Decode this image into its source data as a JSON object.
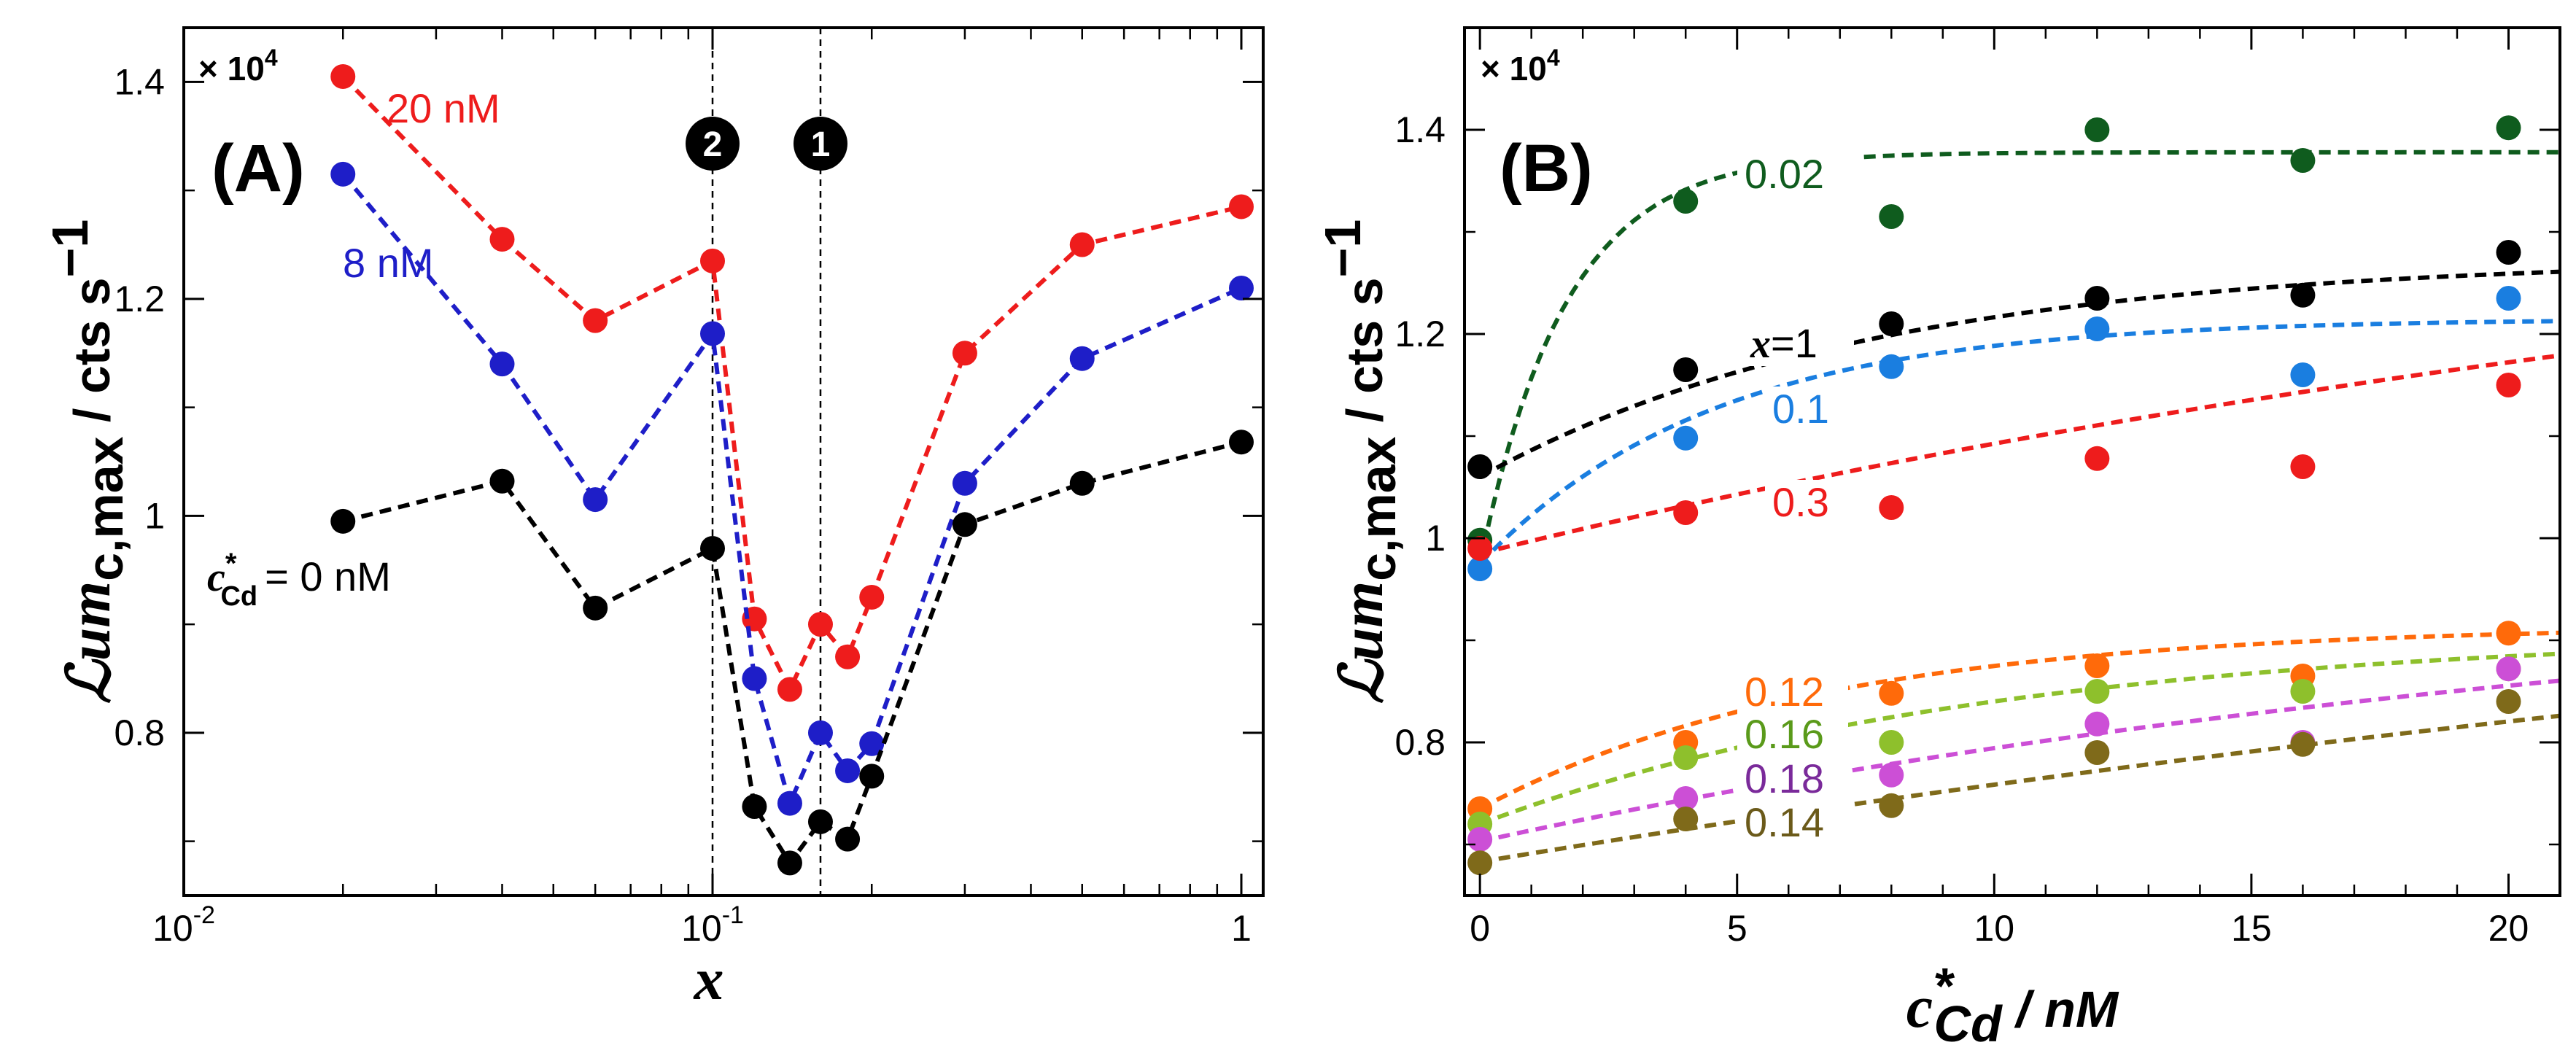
{
  "chart_data": [
    {
      "panel": "(A)",
      "type": "line",
      "x_scale": "log",
      "xlim": [
        0.01,
        1.1
      ],
      "ylim": [
        0.65,
        1.45
      ],
      "multiplier": "× 10",
      "multiplier_exp": "4",
      "xlabel": "x",
      "ylabel_main": "ℒum",
      "ylabel_sub": "c,max",
      "ylabel_unit": " / cts s",
      "ylabel_exp": "−1",
      "x_ticks": [
        {
          "v": 0.01,
          "base": "10",
          "exp": "-2"
        },
        {
          "v": 0.1,
          "base": "10",
          "exp": "-1"
        },
        {
          "v": 1,
          "base": "1",
          "exp": ""
        }
      ],
      "y_ticks": [
        {
          "v": 0.8,
          "label": "0.8"
        },
        {
          "v": 1.0,
          "label": "1"
        },
        {
          "v": 1.2,
          "label": "1.2"
        },
        {
          "v": 1.4,
          "label": "1.4"
        }
      ],
      "vlines": [
        {
          "x": 0.1,
          "marker": "2"
        },
        {
          "x": 0.16,
          "marker": "1"
        }
      ],
      "series": [
        {
          "name": "20 nM",
          "color": "#ee1c1c",
          "x": [
            0.02,
            0.04,
            0.06,
            0.1,
            0.12,
            0.14,
            0.16,
            0.18,
            0.2,
            0.3,
            0.5,
            1.0
          ],
          "y": [
            1.405,
            1.255,
            1.18,
            1.235,
            0.905,
            0.84,
            0.9,
            0.87,
            0.925,
            1.15,
            1.25,
            1.285
          ]
        },
        {
          "name": "8 nM",
          "color": "#1e1ec8",
          "x": [
            0.02,
            0.04,
            0.06,
            0.1,
            0.12,
            0.14,
            0.16,
            0.18,
            0.2,
            0.3,
            0.5,
            1.0
          ],
          "y": [
            1.315,
            1.14,
            1.015,
            1.168,
            0.85,
            0.735,
            0.8,
            0.765,
            0.79,
            1.03,
            1.145,
            1.21
          ]
        },
        {
          "name": "0 nM",
          "color": "#000000",
          "x": [
            0.02,
            0.04,
            0.06,
            0.1,
            0.12,
            0.14,
            0.16,
            0.18,
            0.2,
            0.3,
            0.5,
            1.0
          ],
          "y": [
            0.995,
            1.032,
            0.915,
            0.97,
            0.732,
            0.68,
            0.718,
            0.702,
            0.76,
            0.992,
            1.03,
            1.068
          ]
        }
      ],
      "labels": {
        "s20": "20 nM",
        "s8": "8 nM",
        "s0_sym": "c",
        "s0_sup": "*",
        "s0_sub": "Cd",
        "s0_val": "= 0 nM"
      }
    },
    {
      "panel": "(B)",
      "type": "scatter",
      "xlim": [
        -0.3,
        21.0
      ],
      "ylim": [
        0.65,
        1.5
      ],
      "multiplier": "× 10",
      "multiplier_exp": "4",
      "xlabel_sym": "c",
      "xlabel_sup": "*",
      "xlabel_sub": "Cd",
      "xlabel_unit": " / nM",
      "ylabel_main": "ℒum",
      "ylabel_sub": "c,max",
      "ylabel_unit": " / cts s",
      "ylabel_exp": "−1",
      "x_ticks": [
        {
          "v": 0,
          "label": "0"
        },
        {
          "v": 5,
          "label": "5"
        },
        {
          "v": 10,
          "label": "10"
        },
        {
          "v": 15,
          "label": "15"
        },
        {
          "v": 20,
          "label": "20"
        }
      ],
      "y_ticks": [
        {
          "v": 0.8,
          "label": "0.8"
        },
        {
          "v": 1.0,
          "label": "1"
        },
        {
          "v": 1.2,
          "label": "1.2"
        },
        {
          "v": 1.4,
          "label": "1.4"
        }
      ],
      "series": [
        {
          "name": "0.02",
          "color": "#0f5c1e",
          "x": [
            0,
            4,
            8,
            12,
            16,
            20
          ],
          "y": [
            0.998,
            1.33,
            1.315,
            1.4,
            1.37,
            1.402
          ],
          "fit": [
            0.975,
            1.378,
            0.6
          ]
        },
        {
          "name": "x=1",
          "color": "#000000",
          "x": [
            0,
            4,
            8,
            12,
            16,
            20
          ],
          "y": [
            1.07,
            1.165,
            1.21,
            1.235,
            1.238,
            1.28
          ],
          "fit": [
            1.06,
            1.275,
            0.13
          ]
        },
        {
          "name": "0.1",
          "color": "#1a7ee0",
          "x": [
            0,
            4,
            8,
            12,
            16,
            20
          ],
          "y": [
            0.97,
            1.098,
            1.168,
            1.205,
            1.16,
            1.235
          ],
          "fit": [
            0.975,
            1.215,
            0.22
          ]
        },
        {
          "name": "0.3",
          "color": "#ee1c1c",
          "x": [
            0,
            4,
            8,
            12,
            16,
            20
          ],
          "y": [
            0.99,
            1.025,
            1.03,
            1.078,
            1.07,
            1.15
          ],
          "fit": [
            0.985,
            1.4,
            0.03
          ]
        },
        {
          "name": "0.12",
          "color": "#ff6a0a",
          "x": [
            0,
            4,
            8,
            12,
            16,
            20
          ],
          "y": [
            0.735,
            0.8,
            0.848,
            0.875,
            0.865,
            0.907
          ],
          "fit": [
            0.735,
            0.915,
            0.15
          ]
        },
        {
          "name": "0.16",
          "color": "#8ec02c",
          "x": [
            0,
            4,
            8,
            12,
            16,
            20
          ],
          "y": [
            0.72,
            0.785,
            0.8,
            0.85,
            0.85,
            0.872
          ],
          "fit": [
            0.72,
            0.91,
            0.1
          ]
        },
        {
          "name": "0.18",
          "color": "#cc4fd6",
          "x": [
            0,
            4,
            8,
            12,
            16,
            20
          ],
          "y": [
            0.705,
            0.745,
            0.768,
            0.818,
            0.8,
            0.872
          ],
          "fit": [
            0.703,
            0.98,
            0.04
          ]
        },
        {
          "name": "0.14",
          "color": "#7f6a1a",
          "x": [
            0,
            4,
            8,
            12,
            16,
            20
          ],
          "y": [
            0.682,
            0.725,
            0.738,
            0.79,
            0.798,
            0.84
          ],
          "fit": [
            0.683,
            1.1,
            0.02
          ]
        }
      ],
      "labels": {
        "s002": "0.02",
        "sx1_sym": "x",
        "sx1_val": "=1",
        "s01": "0.1",
        "s03": "0.3",
        "s012": "0.12",
        "s016": "0.16",
        "s018": "0.18",
        "s014": "0.14"
      }
    }
  ]
}
